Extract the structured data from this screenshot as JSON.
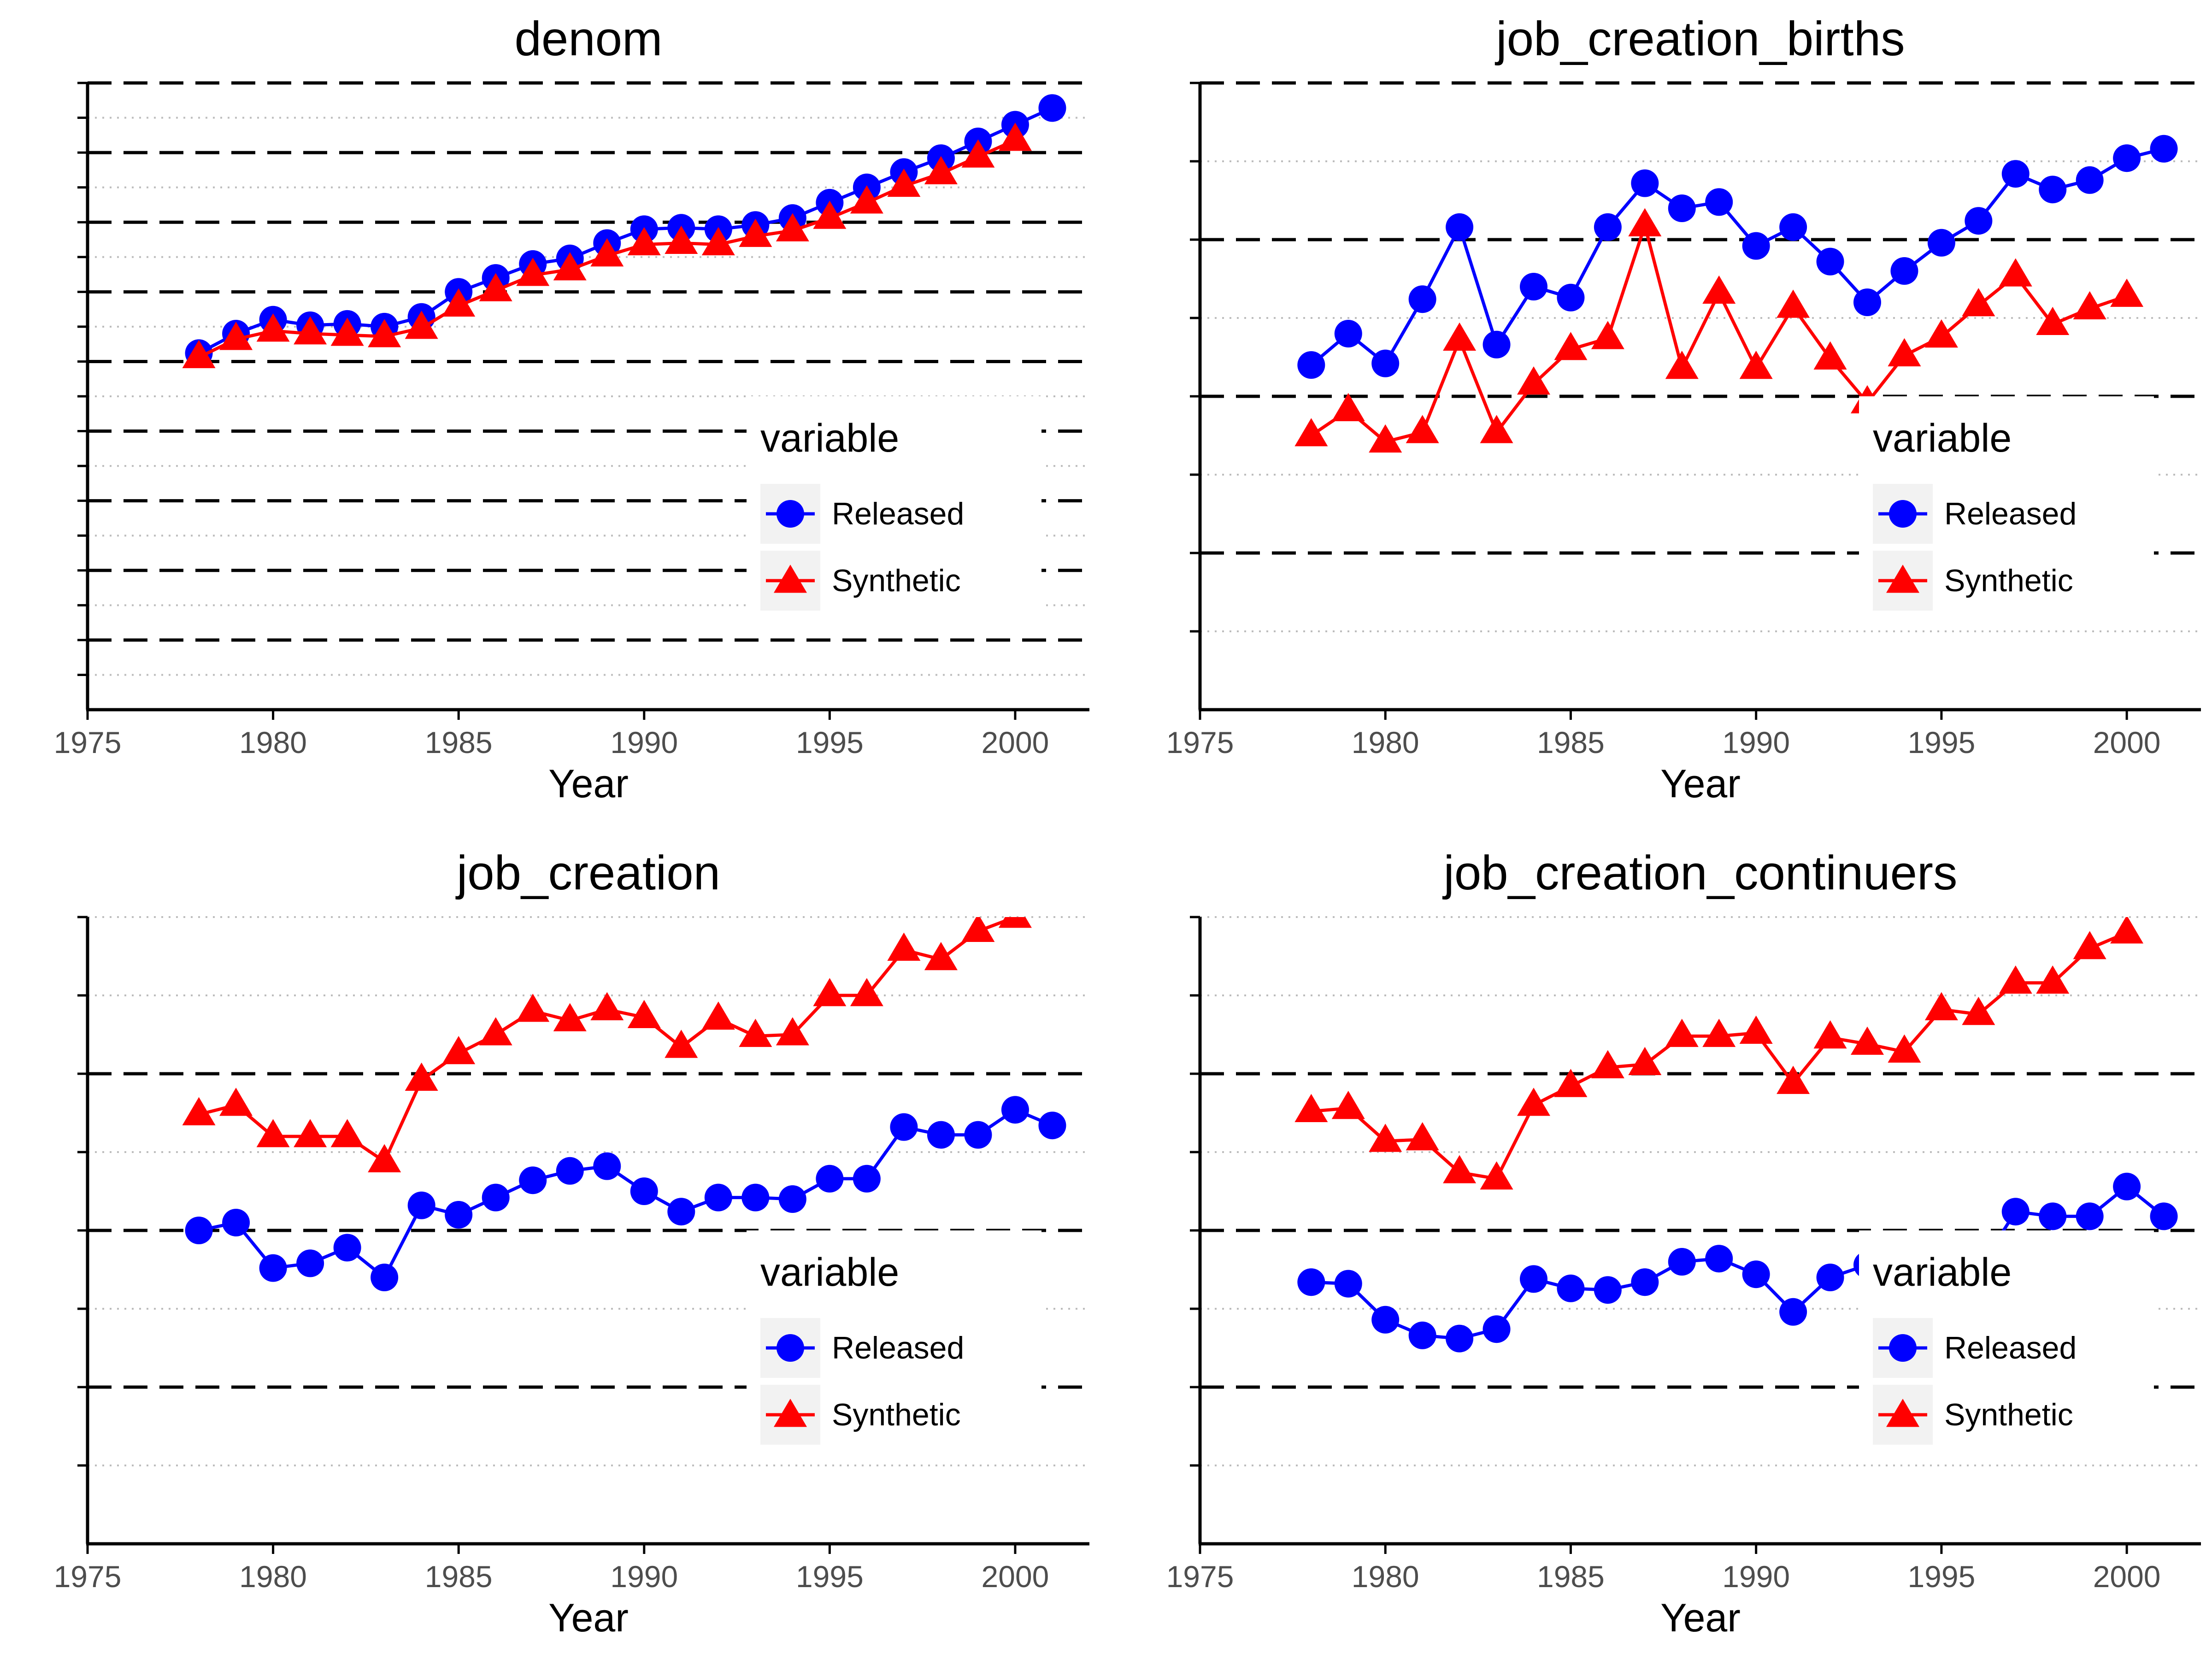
{
  "chart_data": [
    {
      "type": "line",
      "title": "denom",
      "xlabel": "Year",
      "ylabel": "",
      "xlim": [
        1975,
        2002
      ],
      "ylim": [
        0,
        45
      ],
      "x_ticks": [
        1975,
        1980,
        1985,
        1990,
        1995,
        2000
      ],
      "y_major_lines": [
        5,
        10,
        15,
        20,
        25,
        30,
        35,
        40,
        45
      ],
      "y_minor_lines": [
        2.5,
        7.5,
        12.5,
        17.5,
        22.5,
        27.5,
        32.5,
        37.5,
        42.5
      ],
      "grid": "horizontal dashed (major) and dotted (minor)",
      "y_tick_labels_shown": false,
      "legend": {
        "title": "variable",
        "position": "bottom-right"
      },
      "series": [
        {
          "name": "Released",
          "marker": "circle",
          "x": [
            1978,
            1979,
            1980,
            1981,
            1982,
            1983,
            1984,
            1985,
            1986,
            1987,
            1988,
            1989,
            1990,
            1991,
            1992,
            1993,
            1994,
            1995,
            1996,
            1997,
            1998,
            1999,
            2000,
            2001
          ],
          "values": [
            25.6,
            27.0,
            28.0,
            27.6,
            27.7,
            27.5,
            28.2,
            30.0,
            31.0,
            32.0,
            32.4,
            33.5,
            34.5,
            34.6,
            34.5,
            34.8,
            35.3,
            36.4,
            37.5,
            38.6,
            39.6,
            40.8,
            42.0,
            43.2
          ]
        },
        {
          "name": "Synthetic",
          "marker": "triangle",
          "x": [
            1978,
            1979,
            1980,
            1981,
            1982,
            1983,
            1984,
            1985,
            1986,
            1987,
            1988,
            1989,
            1990,
            1991,
            1992,
            1993,
            1994,
            1995,
            1996,
            1997,
            1998,
            1999,
            2000
          ],
          "values": [
            25.3,
            26.6,
            27.2,
            27.0,
            26.9,
            26.8,
            27.4,
            29.0,
            30.1,
            31.2,
            31.6,
            32.6,
            33.4,
            33.5,
            33.4,
            34.0,
            34.4,
            35.3,
            36.4,
            37.6,
            38.5,
            39.7,
            40.9
          ]
        }
      ]
    },
    {
      "type": "line",
      "title": "job_creation_births",
      "xlabel": "Year",
      "ylabel": "",
      "xlim": [
        1975,
        2002
      ],
      "ylim": [
        0,
        40
      ],
      "x_ticks": [
        1975,
        1980,
        1985,
        1990,
        1995,
        2000
      ],
      "y_major_lines": [
        10,
        20,
        30,
        40
      ],
      "y_minor_lines": [
        5,
        15,
        25,
        35
      ],
      "grid": "horizontal dashed (major) and dotted (minor)",
      "y_tick_labels_shown": false,
      "legend": {
        "title": "variable",
        "position": "bottom-right"
      },
      "series": [
        {
          "name": "Released",
          "marker": "circle",
          "x": [
            1978,
            1979,
            1980,
            1981,
            1982,
            1983,
            1984,
            1985,
            1986,
            1987,
            1988,
            1989,
            1990,
            1991,
            1992,
            1993,
            1994,
            1995,
            1996,
            1997,
            1998,
            1999,
            2000,
            2001
          ],
          "values": [
            22.0,
            24.0,
            22.1,
            26.2,
            30.8,
            23.3,
            27.0,
            26.3,
            30.8,
            33.6,
            32.0,
            32.4,
            29.6,
            30.8,
            28.6,
            26.0,
            28.0,
            29.8,
            31.2,
            34.2,
            33.2,
            33.8,
            35.2,
            35.8
          ]
        },
        {
          "name": "Synthetic",
          "marker": "triangle",
          "x": [
            1978,
            1979,
            1980,
            1981,
            1982,
            1983,
            1984,
            1985,
            1986,
            1987,
            1988,
            1989,
            1990,
            1991,
            1992,
            1993,
            1994,
            1995,
            1996,
            1997,
            1998,
            1999,
            2000
          ],
          "values": [
            17.5,
            19.1,
            17.1,
            17.7,
            23.6,
            17.7,
            20.8,
            23.0,
            23.7,
            30.9,
            21.8,
            26.6,
            21.8,
            25.7,
            22.4,
            19.6,
            22.6,
            23.8,
            25.8,
            27.7,
            24.6,
            25.6,
            26.4
          ]
        }
      ]
    },
    {
      "type": "line",
      "title": "job_creation",
      "xlabel": "Year",
      "ylabel": "",
      "xlim": [
        1975,
        2002
      ],
      "ylim": [
        0,
        40
      ],
      "x_ticks": [
        1975,
        1980,
        1985,
        1990,
        1995,
        2000
      ],
      "y_major_lines": [
        10,
        20,
        30
      ],
      "y_minor_lines": [
        5,
        15,
        25,
        35,
        40
      ],
      "grid": "horizontal dashed (major) and dotted (minor)",
      "y_tick_labels_shown": false,
      "legend": {
        "title": "variable",
        "position": "bottom-right"
      },
      "series": [
        {
          "name": "Released",
          "marker": "circle",
          "x": [
            1978,
            1979,
            1980,
            1981,
            1982,
            1983,
            1984,
            1985,
            1986,
            1987,
            1988,
            1989,
            1990,
            1991,
            1992,
            1993,
            1994,
            1995,
            1996,
            1997,
            1998,
            1999,
            2000,
            2001
          ],
          "values": [
            20.0,
            20.5,
            17.6,
            17.9,
            18.9,
            17.0,
            21.6,
            21.0,
            22.1,
            23.2,
            23.8,
            24.1,
            22.5,
            21.2,
            22.1,
            22.1,
            22.0,
            23.3,
            23.3,
            26.6,
            26.1,
            26.1,
            27.7,
            26.7
          ]
        },
        {
          "name": "Synthetic",
          "marker": "triangle",
          "x": [
            1978,
            1979,
            1980,
            1981,
            1982,
            1983,
            1984,
            1985,
            1986,
            1987,
            1988,
            1989,
            1990,
            1991,
            1992,
            1993,
            1994,
            1995,
            1996,
            1997,
            1998,
            1999,
            2000
          ],
          "values": [
            27.4,
            28.0,
            26.0,
            26.0,
            26.0,
            24.4,
            29.6,
            31.3,
            32.5,
            34.0,
            33.4,
            34.1,
            33.6,
            31.7,
            33.5,
            32.4,
            32.5,
            35.0,
            35.0,
            37.9,
            37.3,
            39.1,
            40.0
          ]
        }
      ]
    },
    {
      "type": "line",
      "title": "job_creation_continuers",
      "xlabel": "Year",
      "ylabel": "",
      "xlim": [
        1975,
        2002
      ],
      "ylim": [
        0,
        40
      ],
      "x_ticks": [
        1975,
        1980,
        1985,
        1990,
        1995,
        2000
      ],
      "y_major_lines": [
        10,
        20,
        30
      ],
      "y_minor_lines": [
        5,
        15,
        25,
        35,
        40
      ],
      "grid": "horizontal dashed (major) and dotted (minor)",
      "y_tick_labels_shown": false,
      "legend": {
        "title": "variable",
        "position": "bottom-right"
      },
      "series": [
        {
          "name": "Released",
          "marker": "circle",
          "x": [
            1978,
            1979,
            1980,
            1981,
            1982,
            1983,
            1984,
            1985,
            1986,
            1987,
            1988,
            1989,
            1990,
            1991,
            1992,
            1993,
            1994,
            1995,
            1996,
            1997,
            1998,
            1999,
            2000,
            2001
          ],
          "values": [
            16.7,
            16.6,
            14.3,
            13.3,
            13.1,
            13.7,
            16.9,
            16.3,
            16.2,
            16.7,
            18.0,
            18.2,
            17.2,
            14.8,
            17.0,
            17.8,
            17.0,
            18.0,
            17.5,
            21.2,
            20.9,
            20.9,
            22.8,
            20.9
          ]
        },
        {
          "name": "Synthetic",
          "marker": "triangle",
          "x": [
            1978,
            1979,
            1980,
            1981,
            1982,
            1983,
            1984,
            1985,
            1986,
            1987,
            1988,
            1989,
            1990,
            1991,
            1992,
            1993,
            1994,
            1995,
            1996,
            1997,
            1998,
            1999,
            2000
          ],
          "values": [
            27.6,
            27.8,
            25.7,
            25.8,
            23.7,
            23.3,
            28.0,
            29.2,
            30.4,
            30.6,
            32.4,
            32.4,
            32.6,
            29.4,
            32.3,
            31.9,
            31.4,
            34.1,
            33.8,
            35.8,
            35.8,
            38.0,
            39.0
          ]
        }
      ]
    }
  ],
  "colors": {
    "released": "#0000ff",
    "synthetic": "#ff0000",
    "axis": "#000000",
    "grid_major": "#000000",
    "grid_minor": "#bdbdbd",
    "tick_text": "#4d4d4d",
    "legend_key_bg": "#f2f2f2"
  }
}
